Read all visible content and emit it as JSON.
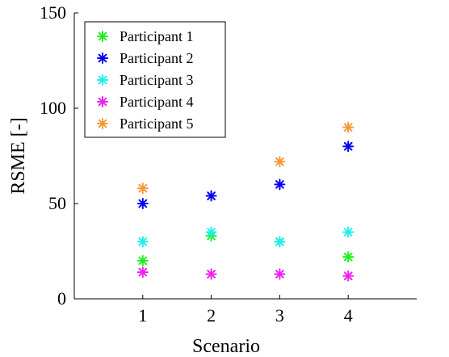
{
  "chart_data": {
    "type": "scatter",
    "marker": "asterisk",
    "xlabel": "Scenario",
    "ylabel": "RSME [-]",
    "xlim": [
      0,
      5
    ],
    "ylim": [
      0,
      150
    ],
    "xticks": [
      "1",
      "2",
      "3",
      "4"
    ],
    "yticks": [
      "0",
      "50",
      "100",
      "150"
    ],
    "grid": false,
    "legend_position": "top-left",
    "x": [
      1,
      2,
      3,
      4
    ],
    "series": [
      {
        "name": "Participant 1",
        "color": "#22ee22",
        "values": [
          20,
          33,
          30,
          22
        ]
      },
      {
        "name": "Participant 2",
        "color": "#0000ee",
        "values": [
          50,
          54,
          60,
          80
        ]
      },
      {
        "name": "Participant 3",
        "color": "#22eeee",
        "values": [
          30,
          35,
          30,
          35
        ]
      },
      {
        "name": "Participant 4",
        "color": "#ee22ee",
        "values": [
          14,
          13,
          13,
          12
        ]
      },
      {
        "name": "Participant 5",
        "color": "#f5993a",
        "values": [
          58,
          null,
          72,
          90
        ]
      }
    ]
  }
}
